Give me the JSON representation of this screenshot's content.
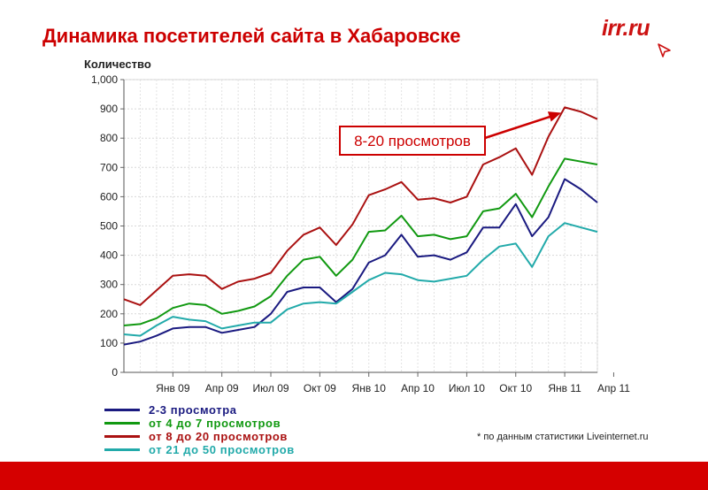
{
  "slide": {
    "title": "Динамика посетителей сайта в Хабаровске",
    "logo_text": "irr.ru",
    "footnote": "* по данным статистики Liveinternet.ru",
    "brand_color": "#cc0000"
  },
  "chart_data": {
    "type": "line",
    "title": "",
    "xlabel": "",
    "ylabel": "Количество",
    "ylim": [
      0,
      1000
    ],
    "yticks": [
      0,
      100,
      200,
      300,
      400,
      500,
      600,
      700,
      800,
      900,
      1000
    ],
    "ytick_labels": [
      "0",
      "100",
      "200",
      "300",
      "400",
      "500",
      "600",
      "700",
      "800",
      "900",
      "1,000"
    ],
    "x_ticks": [
      {
        "index": 3,
        "label": "Янв 09"
      },
      {
        "index": 6,
        "label": "Апр 09"
      },
      {
        "index": 9,
        "label": "Июл 09"
      },
      {
        "index": 12,
        "label": "Окт 09"
      },
      {
        "index": 15,
        "label": "Янв 10"
      },
      {
        "index": 18,
        "label": "Апр 10"
      },
      {
        "index": 21,
        "label": "Июл 10"
      },
      {
        "index": 24,
        "label": "Окт 10"
      },
      {
        "index": 27,
        "label": "Янв 11"
      },
      {
        "index": 30,
        "label": "Апр 11"
      }
    ],
    "grid": true,
    "legend_position": "bottom",
    "series": [
      {
        "name": "2-3 просмотра",
        "color": "#1a1a80",
        "values": [
          95,
          105,
          125,
          150,
          155,
          155,
          135,
          145,
          155,
          200,
          275,
          290,
          290,
          240,
          285,
          375,
          400,
          470,
          395,
          400,
          385,
          410,
          495,
          495,
          575,
          465,
          530,
          660,
          625,
          580
        ]
      },
      {
        "name": "от 4 до 7 просмотров",
        "color": "#119911",
        "values": [
          160,
          165,
          185,
          220,
          235,
          230,
          200,
          210,
          225,
          260,
          330,
          385,
          395,
          330,
          385,
          480,
          485,
          535,
          465,
          470,
          455,
          465,
          550,
          560,
          610,
          530,
          635,
          730,
          720,
          710
        ]
      },
      {
        "name": "от 8 до 20 просмотров",
        "color": "#aa1111",
        "values": [
          250,
          230,
          280,
          330,
          335,
          330,
          285,
          310,
          320,
          340,
          415,
          470,
          495,
          435,
          505,
          605,
          625,
          650,
          590,
          595,
          580,
          600,
          710,
          735,
          765,
          675,
          805,
          905,
          890,
          865
        ]
      },
      {
        "name": "от 21 до 50 просмотров",
        "color": "#22aaaa",
        "values": [
          130,
          125,
          160,
          190,
          180,
          175,
          150,
          160,
          170,
          170,
          215,
          235,
          240,
          235,
          275,
          315,
          340,
          335,
          315,
          310,
          320,
          330,
          385,
          430,
          440,
          360,
          465,
          510,
          495,
          480
        ]
      }
    ],
    "annotation": {
      "text": "8-20 просмотров",
      "series": 2,
      "target_index": 27
    }
  }
}
